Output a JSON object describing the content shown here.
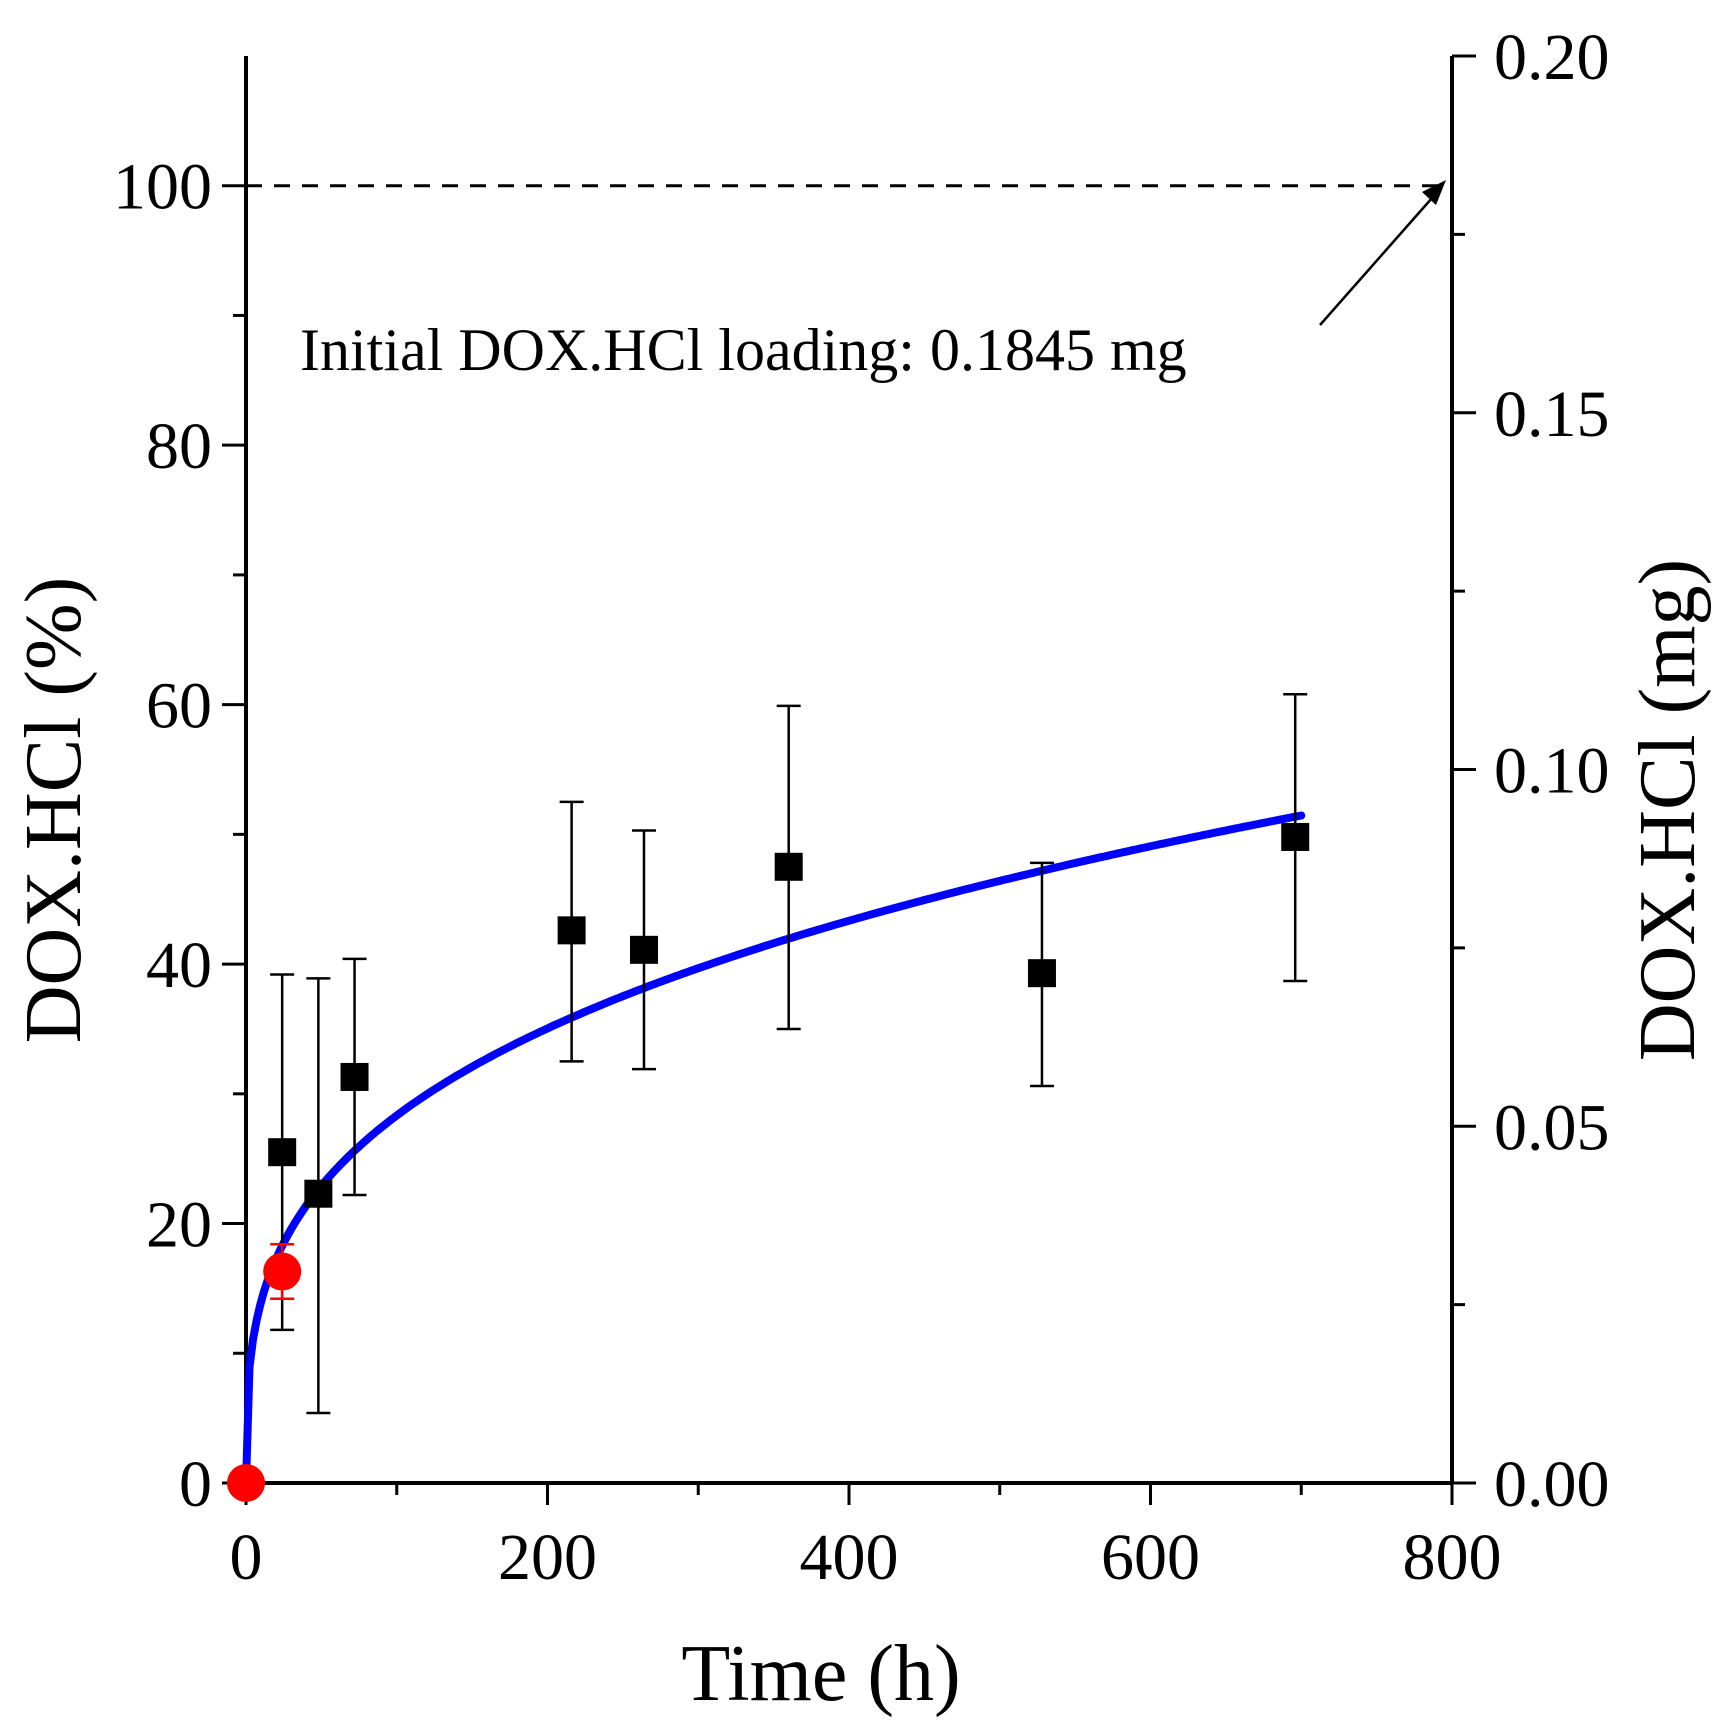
{
  "chart_data": {
    "type": "scatter",
    "xlabel": "Time (h)",
    "ylabel": "DOX.HCl (%)",
    "y2label": "DOX.HCl (mg)",
    "xlim": [
      0,
      800
    ],
    "ylim": [
      0,
      110
    ],
    "y2lim": [
      0,
      0.2
    ],
    "x_ticks": [
      "0",
      "200",
      "400",
      "600",
      "800"
    ],
    "y_ticks": [
      "0",
      "20",
      "40",
      "60",
      "80",
      "100"
    ],
    "y2_ticks": [
      "0.00",
      "0.05",
      "0.10",
      "0.15",
      "0.20"
    ],
    "grid": false,
    "annotation": "Initial DOX.HCl loading: 0.1845 mg",
    "reference_line": {
      "y": 100,
      "style": "dashed"
    },
    "series": [
      {
        "marker": "square",
        "color": "#000000",
        "x": [
          24,
          48,
          72,
          216,
          264,
          360,
          528,
          696
        ],
        "y": [
          25.5,
          22.3,
          31.3,
          42.6,
          41.1,
          47.5,
          39.3,
          49.8
        ],
        "err_low": [
          13.7,
          16.9,
          9.1,
          10.1,
          9.2,
          12.5,
          8.7,
          11.1
        ],
        "err_high": [
          13.7,
          16.6,
          9.1,
          9.9,
          9.2,
          12.4,
          8.5,
          11.0
        ]
      },
      {
        "marker": "circle",
        "color": "#ff0000",
        "x": [
          0,
          24
        ],
        "y": [
          0,
          16.3
        ],
        "err_low": [
          0,
          2.1
        ],
        "err_high": [
          0,
          2.1
        ]
      },
      {
        "type": "line",
        "color": "#0000ff",
        "fit": {
          "model": "power",
          "a": 6.9,
          "b": 0.3067,
          "x_range": [
            0,
            700
          ]
        }
      }
    ]
  }
}
